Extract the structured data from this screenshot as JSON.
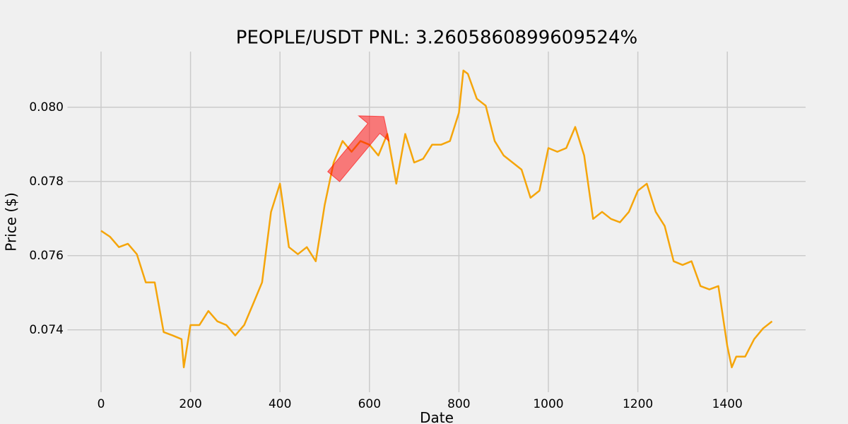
{
  "chart_data": {
    "type": "line",
    "title": "PEOPLE/USDT  PNL: 3.2605860899609524%",
    "x_label": "Date",
    "y_label": "Price ($)",
    "x": [
      0,
      20,
      40,
      60,
      80,
      100,
      120,
      140,
      160,
      180,
      185,
      200,
      220,
      240,
      260,
      280,
      300,
      320,
      340,
      360,
      380,
      400,
      420,
      440,
      460,
      480,
      500,
      520,
      540,
      560,
      580,
      600,
      620,
      640,
      660,
      680,
      700,
      720,
      740,
      760,
      780,
      800,
      810,
      820,
      840,
      860,
      880,
      900,
      920,
      940,
      960,
      980,
      1000,
      1020,
      1040,
      1060,
      1080,
      1100,
      1120,
      1140,
      1160,
      1180,
      1200,
      1220,
      1240,
      1260,
      1280,
      1300,
      1320,
      1340,
      1360,
      1380,
      1400,
      1410,
      1420,
      1440,
      1460,
      1480,
      1500
    ],
    "series": [
      {
        "color": "#f5a50a",
        "values": [
          0.07667,
          0.07651,
          0.07623,
          0.07632,
          0.07604,
          0.07528,
          0.07528,
          0.07394,
          0.07385,
          0.07375,
          0.07299,
          0.07413,
          0.07413,
          0.07451,
          0.07423,
          0.07413,
          0.07385,
          0.07413,
          0.0747,
          0.07528,
          0.07718,
          0.07794,
          0.07623,
          0.07604,
          0.07623,
          0.07585,
          0.07737,
          0.07851,
          0.07909,
          0.0788,
          0.07909,
          0.07899,
          0.0787,
          0.07928,
          0.07794,
          0.07928,
          0.07851,
          0.07861,
          0.07899,
          0.07899,
          0.07909,
          0.07985,
          0.08099,
          0.0809,
          0.08023,
          0.08004,
          0.07909,
          0.0787,
          0.07851,
          0.07832,
          0.07756,
          0.07775,
          0.0789,
          0.0788,
          0.0789,
          0.07947,
          0.0787,
          0.07699,
          0.07718,
          0.07699,
          0.0769,
          0.07718,
          0.07775,
          0.07794,
          0.07718,
          0.0768,
          0.07585,
          0.07575,
          0.07585,
          0.07518,
          0.07509,
          0.07518,
          0.07356,
          0.07299,
          0.07328,
          0.07328,
          0.07375,
          0.07404,
          0.07423
        ]
      }
    ],
    "arrow": {
      "x": [
        520,
        632
      ],
      "y": [
        0.07813,
        0.07975
      ],
      "color": "#ff0000"
    },
    "xlim": [
      -75,
      1575
    ],
    "ylim": [
      0.07232,
      0.0815
    ],
    "xticks": [
      0,
      200,
      400,
      600,
      800,
      1000,
      1200,
      1400
    ],
    "yticks": [
      0.074,
      0.076,
      0.078,
      {
        "value": 0.08,
        "label": "0.080"
      }
    ],
    "grid": true
  }
}
